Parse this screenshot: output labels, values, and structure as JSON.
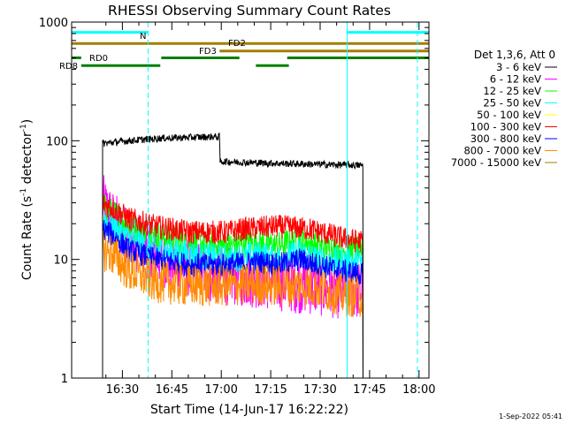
{
  "chart_data": {
    "type": "line",
    "title": "RHESSI Observing Summary Count Rates",
    "xlabel": "Start Time (14-Jun-17 16:22:22)",
    "ylabel_main": "Count Rate (s",
    "ylabel_sup1": "-1",
    "ylabel_mid": " detector",
    "ylabel_sup2": "-1",
    "ylabel_end": ")",
    "y_scale": "log",
    "ylim": [
      1,
      1000
    ],
    "y_ticks": [
      {
        "v": 1,
        "label": "1"
      },
      {
        "v": 10,
        "label": "10"
      },
      {
        "v": 100,
        "label": "100"
      },
      {
        "v": 1000,
        "label": "1000"
      }
    ],
    "x_range_min": [
      -7.4,
      101
    ],
    "x_ticks": [
      {
        "m": 8,
        "label": "16:30"
      },
      {
        "m": 23,
        "label": "16:45"
      },
      {
        "m": 38,
        "label": "17:00"
      },
      {
        "m": 53,
        "label": "17:15"
      },
      {
        "m": 68,
        "label": "17:30"
      },
      {
        "m": 83,
        "label": "17:45"
      },
      {
        "m": 98,
        "label": "18:00"
      }
    ],
    "legend": {
      "header": "Det 1,3,6, Att 0",
      "placement": "right",
      "entries": [
        {
          "label": "3 - 6 keV",
          "color": "#000000"
        },
        {
          "label": "6 - 12 keV",
          "color": "#ff00ff"
        },
        {
          "label": "12 - 25 keV",
          "color": "#00ff00"
        },
        {
          "label": "25 - 50 keV",
          "color": "#00ffff"
        },
        {
          "label": "50 - 100 keV",
          "color": "#ffff00"
        },
        {
          "label": "100 - 300 keV",
          "color": "#ff0000"
        },
        {
          "label": "300 - 800 keV",
          "color": "#0000ff"
        },
        {
          "label": "800 - 7000 keV",
          "color": "#ff8c00"
        },
        {
          "label": "7000 - 15000 keV",
          "color": "#a08000"
        }
      ]
    },
    "series": [
      {
        "color": "#ff00ff",
        "noise": 0.25,
        "points": [
          [
            2,
            30
          ],
          [
            5,
            22
          ],
          [
            10,
            15
          ],
          [
            18,
            11
          ],
          [
            25,
            9
          ],
          [
            35,
            7.5
          ],
          [
            45,
            7
          ],
          [
            55,
            6.5
          ],
          [
            65,
            6
          ],
          [
            75,
            5.5
          ],
          [
            81,
            5.5
          ]
        ]
      },
      {
        "color": "#00ff00",
        "noise": 0.12,
        "points": [
          [
            2,
            28
          ],
          [
            5,
            25
          ],
          [
            10,
            19
          ],
          [
            18,
            16
          ],
          [
            28,
            14
          ],
          [
            40,
            13
          ],
          [
            50,
            14
          ],
          [
            55,
            13
          ],
          [
            62,
            15
          ],
          [
            67,
            13
          ],
          [
            75,
            12
          ],
          [
            81,
            12
          ]
        ]
      },
      {
        "color": "#00ffff",
        "noise": 0.12,
        "points": [
          [
            2,
            22
          ],
          [
            5,
            19
          ],
          [
            10,
            15
          ],
          [
            18,
            12
          ],
          [
            28,
            11
          ],
          [
            40,
            10
          ],
          [
            50,
            11
          ],
          [
            55,
            10
          ],
          [
            62,
            11.5
          ],
          [
            67,
            10
          ],
          [
            75,
            9.5
          ],
          [
            81,
            9.5
          ]
        ]
      },
      {
        "color": "#ff0000",
        "noise": 0.1,
        "points": [
          [
            2,
            30
          ],
          [
            5,
            27
          ],
          [
            10,
            22
          ],
          [
            18,
            19
          ],
          [
            28,
            17
          ],
          [
            40,
            17
          ],
          [
            45,
            18
          ],
          [
            55,
            19
          ],
          [
            65,
            18
          ],
          [
            75,
            15
          ],
          [
            81,
            14
          ]
        ]
      },
      {
        "color": "#0000ff",
        "noise": 0.1,
        "points": [
          [
            2,
            18
          ],
          [
            5,
            16
          ],
          [
            10,
            12
          ],
          [
            18,
            10
          ],
          [
            28,
            9
          ],
          [
            40,
            9
          ],
          [
            50,
            9.5
          ],
          [
            55,
            9
          ],
          [
            62,
            10
          ],
          [
            67,
            9
          ],
          [
            75,
            8
          ],
          [
            81,
            7.5
          ]
        ]
      },
      {
        "color": "#ff8c00",
        "noise": 0.18,
        "points": [
          [
            2,
            12
          ],
          [
            5,
            11
          ],
          [
            10,
            8
          ],
          [
            18,
            6.5
          ],
          [
            28,
            6
          ],
          [
            40,
            6
          ],
          [
            50,
            6.2
          ],
          [
            55,
            6
          ],
          [
            65,
            6
          ],
          [
            75,
            5
          ],
          [
            81,
            4.8
          ]
        ]
      },
      {
        "color": "#000000",
        "noise": 0.03,
        "points": [
          [
            2,
            95
          ],
          [
            10,
            100
          ],
          [
            20,
            105
          ],
          [
            35,
            108
          ],
          [
            37.5,
            108
          ],
          [
            37.6,
            67
          ],
          [
            50,
            65
          ],
          [
            60,
            64
          ],
          [
            70,
            63
          ],
          [
            81,
            62
          ]
        ]
      }
    ],
    "data_start_min": 2,
    "data_end_min": 81,
    "observing_bars": [
      {
        "label": "N",
        "color": "#00ffff",
        "y": 820,
        "segments": [
          [
            -7.4,
            15.8
          ],
          [
            76.2,
            101
          ]
        ]
      },
      {
        "label": "FD2",
        "color": "#a08000",
        "y": 660,
        "segments": [
          [
            -7.4,
            101
          ]
        ]
      },
      {
        "label": "FD3",
        "color": "#a08000",
        "y": 570,
        "segments": [
          [
            37.5,
            101
          ]
        ]
      },
      {
        "label": "RD0",
        "color": "#008000",
        "y": 500,
        "segments": [
          [
            -7.4,
            -4.5
          ],
          [
            19.8,
            43.5
          ],
          [
            58,
            101
          ]
        ]
      },
      {
        "label": "RD8",
        "color": "#008000",
        "y": 430,
        "segments": [
          [
            -4.5,
            19.5
          ],
          [
            48.5,
            58.5
          ]
        ]
      }
    ],
    "vlines": [
      {
        "m": -7.4,
        "style": "solid"
      },
      {
        "m": 15.8,
        "style": "dashed"
      },
      {
        "m": 76.2,
        "style": "solid"
      },
      {
        "m": 97.5,
        "style": "dashed"
      }
    ]
  },
  "footer": {
    "timestamp": "1-Sep-2022 05:41"
  }
}
